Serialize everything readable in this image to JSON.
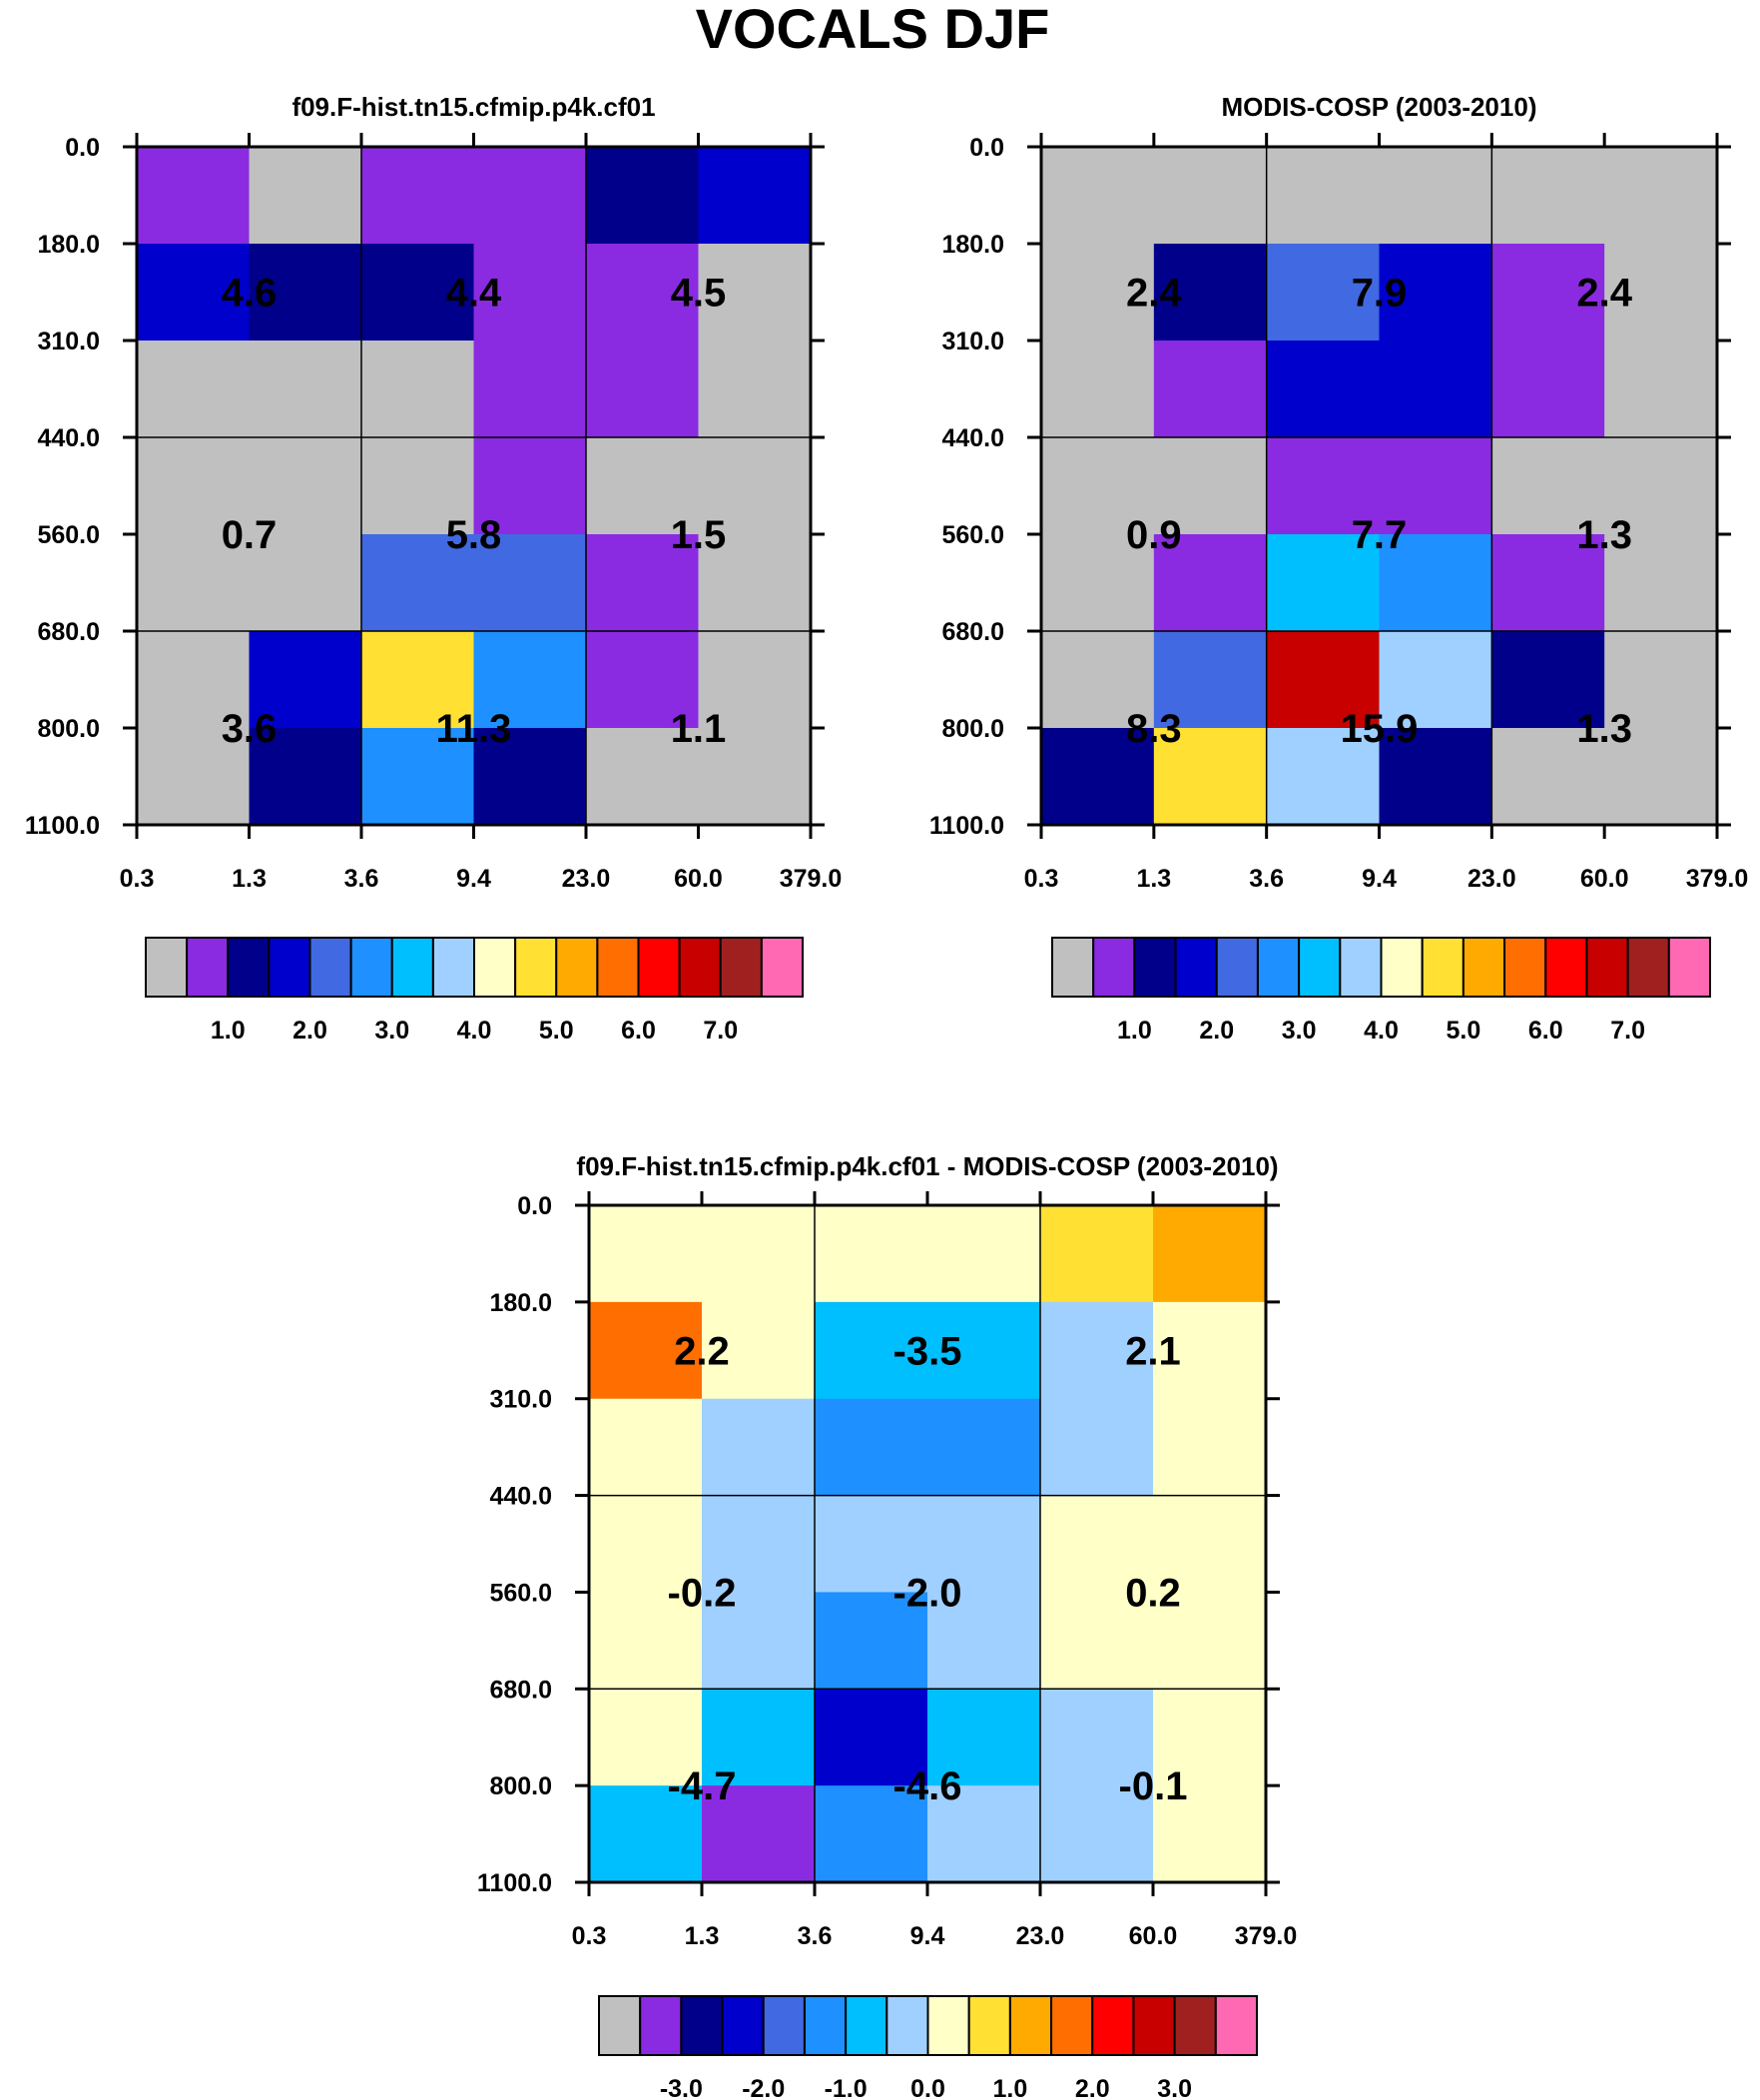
{
  "title": "VOCALS DJF",
  "colors": {
    "missing": "#c0c0c0",
    "grid_line": "#000000",
    "palette": [
      "#c0c0c0",
      "#8a2be2",
      "#00008b",
      "#0000cd",
      "#4169e1",
      "#1e90ff",
      "#00bfff",
      "#a0d0ff",
      "#ffffc8",
      "#ffe033",
      "#ffaa00",
      "#ff6e00",
      "#ff0000",
      "#c80000",
      "#a02020",
      "#ff69b4"
    ]
  },
  "chart_data": [
    {
      "type": "heatmap",
      "title": "f09.F-hist.tn15.cfmip.p4k.cf01",
      "x_ticks": [
        "0.3",
        "1.3",
        "3.6",
        "9.4",
        "23.0",
        "60.0",
        "379.0"
      ],
      "y_ticks": [
        "0.0",
        "180.0",
        "310.0",
        "440.0",
        "560.0",
        "680.0",
        "800.0",
        "1100.0"
      ],
      "cells": [
        [
          1,
          0,
          1,
          1,
          2,
          3
        ],
        [
          3,
          2,
          2,
          1,
          1,
          0
        ],
        [
          0,
          0,
          0,
          1,
          1,
          0
        ],
        [
          0,
          0,
          0,
          1,
          0,
          0
        ],
        [
          0,
          0,
          4,
          4,
          1,
          0
        ],
        [
          0,
          3,
          9,
          5,
          1,
          0
        ],
        [
          0,
          2,
          5,
          2,
          0,
          0
        ]
      ],
      "group_labels": [
        [
          "4.6",
          "4.4",
          "4.5"
        ],
        [
          "0.7",
          "5.8",
          "1.5"
        ],
        [
          "3.6",
          "11.3",
          "1.1"
        ]
      ],
      "colorbar": {
        "boxes": 16,
        "labels": [
          "1.0",
          "2.0",
          "3.0",
          "4.0",
          "5.0",
          "6.0",
          "7.0"
        ],
        "label_start_boundary": 2
      }
    },
    {
      "type": "heatmap",
      "title": "MODIS-COSP (2003-2010)",
      "x_ticks": [
        "0.3",
        "1.3",
        "3.6",
        "9.4",
        "23.0",
        "60.0",
        "379.0"
      ],
      "y_ticks": [
        "0.0",
        "180.0",
        "310.0",
        "440.0",
        "560.0",
        "680.0",
        "800.0",
        "1100.0"
      ],
      "cells": [
        [
          0,
          0,
          0,
          0,
          0,
          0
        ],
        [
          0,
          2,
          4,
          3,
          1,
          0
        ],
        [
          0,
          1,
          3,
          3,
          1,
          0
        ],
        [
          0,
          0,
          1,
          1,
          0,
          0
        ],
        [
          0,
          1,
          6,
          5,
          1,
          0
        ],
        [
          0,
          4,
          13,
          7,
          2,
          0
        ],
        [
          2,
          9,
          7,
          2,
          0,
          0
        ]
      ],
      "group_labels": [
        [
          "2.4",
          "7.9",
          "2.4"
        ],
        [
          "0.9",
          "7.7",
          "1.3"
        ],
        [
          "8.3",
          "15.9",
          "1.3"
        ]
      ],
      "colorbar": {
        "boxes": 16,
        "labels": [
          "1.0",
          "2.0",
          "3.0",
          "4.0",
          "5.0",
          "6.0",
          "7.0"
        ],
        "label_start_boundary": 2
      }
    },
    {
      "type": "heatmap",
      "title": "f09.F-hist.tn15.cfmip.p4k.cf01 - MODIS-COSP (2003-2010)",
      "x_ticks": [
        "0.3",
        "1.3",
        "3.6",
        "9.4",
        "23.0",
        "60.0",
        "379.0"
      ],
      "y_ticks": [
        "0.0",
        "180.0",
        "310.0",
        "440.0",
        "560.0",
        "680.0",
        "800.0",
        "1100.0"
      ],
      "cells": [
        [
          8,
          8,
          8,
          8,
          9,
          10
        ],
        [
          11,
          8,
          6,
          6,
          7,
          8
        ],
        [
          8,
          7,
          5,
          5,
          7,
          8
        ],
        [
          8,
          7,
          7,
          7,
          8,
          8
        ],
        [
          8,
          7,
          5,
          7,
          8,
          8
        ],
        [
          8,
          6,
          3,
          6,
          7,
          8
        ],
        [
          6,
          1,
          5,
          7,
          7,
          8
        ]
      ],
      "group_labels": [
        [
          "2.2",
          "-3.5",
          "2.1"
        ],
        [
          "-0.2",
          "-2.0",
          "0.2"
        ],
        [
          "-4.7",
          "-4.6",
          "-0.1"
        ]
      ],
      "colorbar": {
        "boxes": 16,
        "labels": [
          "-3.0",
          "-2.0",
          "-1.0",
          "0.0",
          "1.0",
          "2.0",
          "3.0"
        ],
        "label_start_boundary": 2
      }
    }
  ]
}
